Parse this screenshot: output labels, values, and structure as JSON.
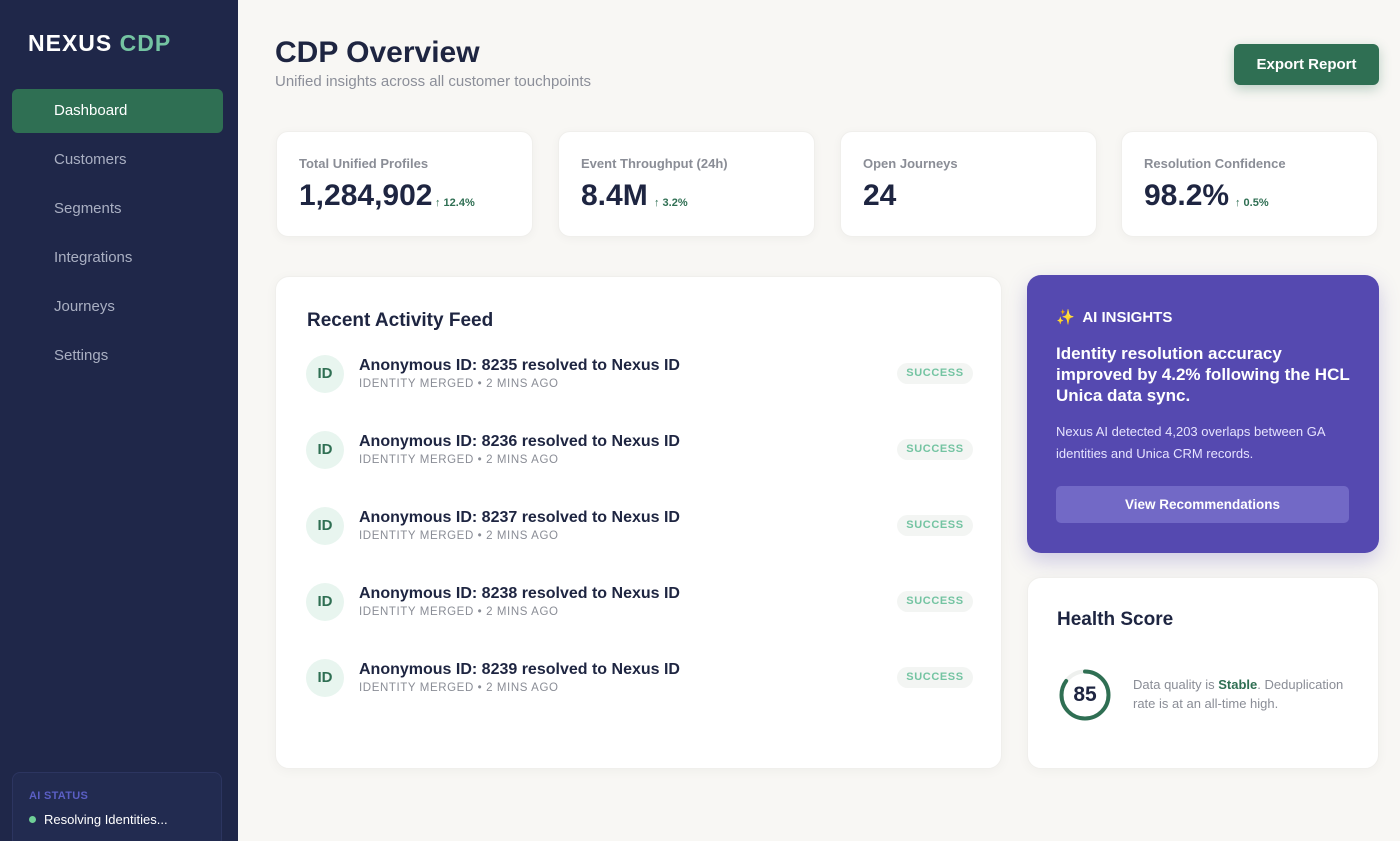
{
  "sidebar": {
    "logo_main": "NEXUS",
    "logo_accent": "CDP",
    "items": [
      {
        "label": "Dashboard"
      },
      {
        "label": "Customers"
      },
      {
        "label": "Segments"
      },
      {
        "label": "Integrations"
      },
      {
        "label": "Journeys"
      },
      {
        "label": "Settings"
      }
    ],
    "active_item": "Dashboard",
    "ai_status": {
      "label": "AI STATUS",
      "text": "Resolving Identities..."
    }
  },
  "header": {
    "title": "CDP Overview",
    "subtitle": "Unified insights across all customer touchpoints",
    "export_label": "Export Report"
  },
  "stats": [
    {
      "label": "Total Unified Profiles",
      "value": "1,284,902",
      "delta": "↑ 12.4%"
    },
    {
      "label": "Event Throughput (24h)",
      "value": "8.4M",
      "delta": "↑ 3.2%"
    },
    {
      "label": "Open Journeys",
      "value": "24",
      "delta": ""
    },
    {
      "label": "Resolution Confidence",
      "value": "98.2%",
      "delta": "↑ 0.5%"
    }
  ],
  "feed": {
    "title": "Recent Activity Feed",
    "items": [
      {
        "avatar": "ID",
        "title": "Anonymous ID: 8235 resolved to Nexus ID",
        "meta": "IDENTITY MERGED • 2 MINS AGO",
        "status": "SUCCESS"
      },
      {
        "avatar": "ID",
        "title": "Anonymous ID: 8236 resolved to Nexus ID",
        "meta": "IDENTITY MERGED • 2 MINS AGO",
        "status": "SUCCESS"
      },
      {
        "avatar": "ID",
        "title": "Anonymous ID: 8237 resolved to Nexus ID",
        "meta": "IDENTITY MERGED • 2 MINS AGO",
        "status": "SUCCESS"
      },
      {
        "avatar": "ID",
        "title": "Anonymous ID: 8238 resolved to Nexus ID",
        "meta": "IDENTITY MERGED • 2 MINS AGO",
        "status": "SUCCESS"
      },
      {
        "avatar": "ID",
        "title": "Anonymous ID: 8239 resolved to Nexus ID",
        "meta": "IDENTITY MERGED • 2 MINS AGO",
        "status": "SUCCESS"
      }
    ]
  },
  "ai_insights": {
    "icon": "sparkles-icon",
    "title": "AI INSIGHTS",
    "headline": "Identity resolution accuracy improved by 4.2% following the HCL Unica data sync.",
    "body": "Nexus AI detected 4,203 overlaps between GA identities and Unica CRM records.",
    "button_label": "View Recommendations"
  },
  "health": {
    "title": "Health Score",
    "score": "85",
    "score_fraction": 0.85,
    "text_before": "Data quality is ",
    "status": "Stable",
    "text_after": ". Deduplication rate is at an all-time high."
  },
  "colors": {
    "sidebar_bg": "#1f2749",
    "accent_green": "#2f6f53",
    "accent_mint": "#74c4a2",
    "ai_purple": "#5549b0",
    "page_bg": "#f8f7f4"
  }
}
